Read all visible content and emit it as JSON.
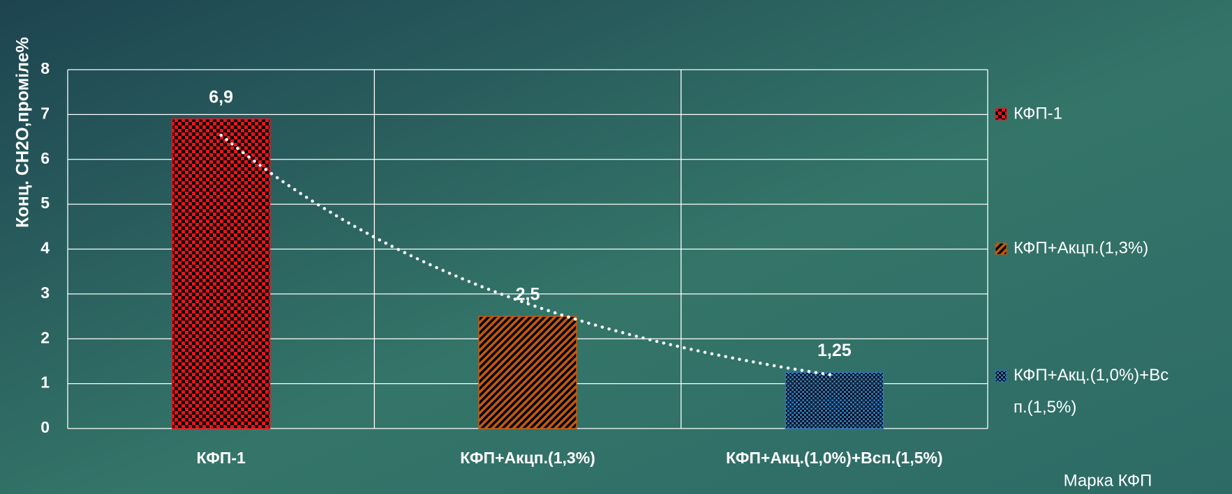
{
  "chart_data": {
    "type": "bar",
    "categories": [
      "КФП-1",
      "КФП+Акцп.(1,3%)",
      "КФП+Акц.(1,0%)+Вс п.(1,5%)"
    ],
    "category_labels": [
      "КФП-1",
      "КФП+Акцп.(1,3%)",
      "КФП+Акц.(1,0%)+Всп.(1,5%)"
    ],
    "values": [
      6.9,
      2.5,
      1.25
    ],
    "value_labels": [
      "6,9",
      "2,5",
      "1,25"
    ],
    "colors": [
      "#e8141c",
      "#c55a11",
      "#2e75b6"
    ],
    "y_label": "Конц. СН2О,проміле%",
    "x_label": "Марка КФП",
    "ylim": [
      0,
      8
    ],
    "yticks": [
      0,
      1,
      2,
      3,
      4,
      5,
      6,
      7,
      8
    ],
    "grid": true,
    "legend": "right",
    "trendline": "exponential"
  }
}
